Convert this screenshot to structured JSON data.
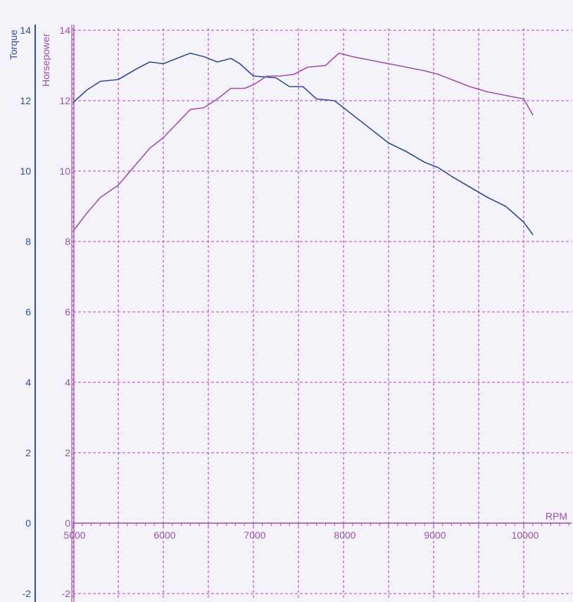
{
  "chart_data": {
    "type": "line",
    "xlabel": "RPM",
    "x_ticks": [
      5000,
      6000,
      7000,
      8000,
      9000,
      10000
    ],
    "xlim": [
      5000,
      10500
    ],
    "y_axes": [
      {
        "label": "Torque",
        "ticks": [
          -2,
          0,
          2,
          4,
          6,
          8,
          10,
          12,
          14
        ],
        "ylim": [
          -2,
          14
        ],
        "color": "#2f4f8f"
      },
      {
        "label": "Horsepower",
        "ticks": [
          -2,
          0,
          2,
          4,
          6,
          8,
          10,
          12,
          14
        ],
        "ylim": [
          -2,
          14
        ],
        "color": "#a050a8"
      }
    ],
    "grid": true,
    "grid_color": "#c060c8",
    "series": [
      {
        "name": "Torque",
        "color": "#2f4f8f",
        "x": [
          5000,
          5150,
          5300,
          5500,
          5700,
          5850,
          6000,
          6150,
          6300,
          6450,
          6600,
          6750,
          6850,
          7000,
          7250,
          7400,
          7550,
          7700,
          7900,
          8100,
          8300,
          8500,
          8700,
          8900,
          9050,
          9200,
          9400,
          9600,
          9800,
          10000,
          10100
        ],
        "y": [
          11.95,
          12.3,
          12.55,
          12.6,
          12.9,
          13.1,
          13.05,
          13.2,
          13.35,
          13.25,
          13.1,
          13.2,
          13.05,
          12.7,
          12.65,
          12.4,
          12.4,
          12.05,
          12.0,
          11.6,
          11.2,
          10.8,
          10.55,
          10.25,
          10.1,
          9.85,
          9.55,
          9.25,
          9.0,
          8.55,
          8.2
        ]
      },
      {
        "name": "Horsepower",
        "color": "#a050a8",
        "x": [
          5000,
          5150,
          5300,
          5500,
          5700,
          5850,
          6000,
          6150,
          6300,
          6450,
          6600,
          6750,
          6900,
          7000,
          7150,
          7300,
          7450,
          7600,
          7800,
          7950,
          8100,
          8300,
          8500,
          8700,
          8900,
          9050,
          9200,
          9400,
          9600,
          9800,
          10000,
          10100
        ],
        "y": [
          8.3,
          8.8,
          9.25,
          9.6,
          10.2,
          10.65,
          10.95,
          11.35,
          11.75,
          11.8,
          12.05,
          12.35,
          12.35,
          12.45,
          12.7,
          12.7,
          12.75,
          12.95,
          13.0,
          13.35,
          13.25,
          13.15,
          13.05,
          12.95,
          12.85,
          12.75,
          12.6,
          12.4,
          12.25,
          12.15,
          12.05,
          11.6
        ]
      }
    ]
  }
}
